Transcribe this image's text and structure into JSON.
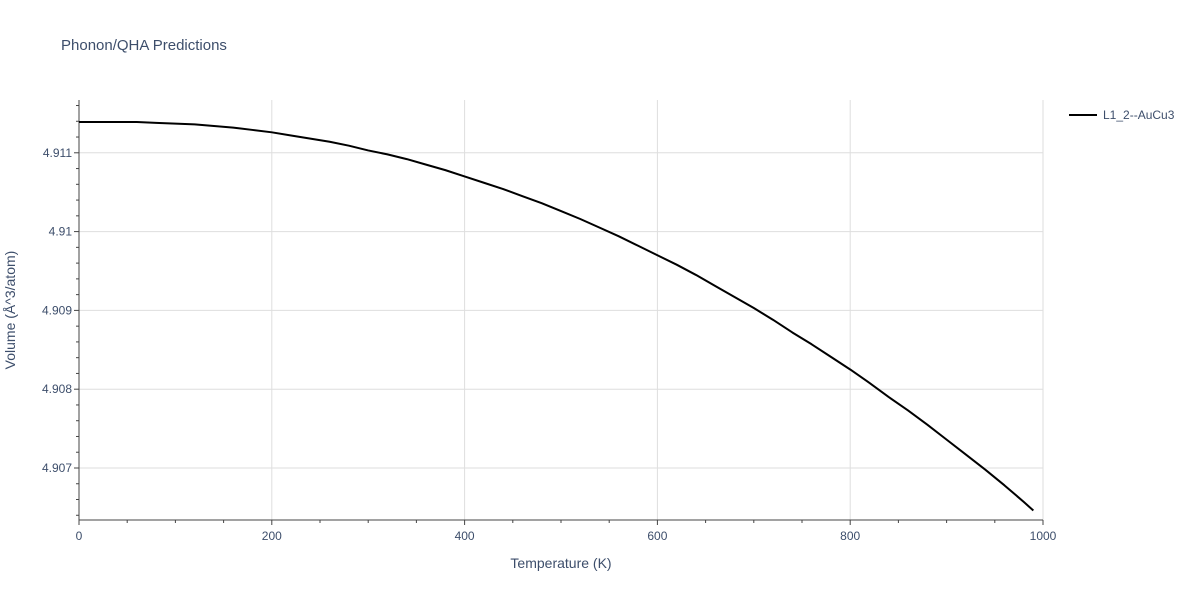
{
  "chart_data": {
    "type": "line",
    "title": "Phonon/QHA Predictions",
    "xlabel": "Temperature (K)",
    "ylabel": "Volume (Å^3/atom)",
    "xlim": [
      0,
      1000
    ],
    "ylim": [
      4.90634,
      4.91167
    ],
    "x_ticks": [
      0,
      200,
      400,
      600,
      800,
      1000
    ],
    "x_tick_labels": [
      "0",
      "200",
      "400",
      "600",
      "800",
      "1000"
    ],
    "y_ticks": [
      4.907,
      4.908,
      4.909,
      4.91,
      4.911
    ],
    "y_tick_labels": [
      "4.907",
      "4.908",
      "4.909",
      "4.91",
      "4.911"
    ],
    "x_minor_step": 50,
    "y_minor_step": 0.0002,
    "grid": true,
    "legend_position": "top-right",
    "series": [
      {
        "name": "L1_2--AuCu3",
        "color": "#000000",
        "x": [
          0,
          20,
          40,
          60,
          80,
          100,
          120,
          140,
          160,
          180,
          200,
          220,
          240,
          260,
          280,
          300,
          320,
          340,
          360,
          380,
          400,
          420,
          440,
          460,
          480,
          500,
          520,
          540,
          560,
          580,
          600,
          620,
          640,
          660,
          680,
          700,
          720,
          740,
          760,
          780,
          800,
          820,
          840,
          860,
          880,
          900,
          920,
          940,
          960,
          980,
          990
        ],
        "y": [
          4.91139,
          4.91139,
          4.91139,
          4.91139,
          4.91138,
          4.91137,
          4.91136,
          4.91134,
          4.91132,
          4.91129,
          4.91126,
          4.91122,
          4.91118,
          4.91114,
          4.91109,
          4.91103,
          4.91098,
          4.91092,
          4.91085,
          4.91078,
          4.9107,
          4.91062,
          4.91054,
          4.91045,
          4.91036,
          4.91026,
          4.91016,
          4.91005,
          4.90994,
          4.90982,
          4.9097,
          4.90958,
          4.90945,
          4.90931,
          4.90917,
          4.90903,
          4.90888,
          4.90872,
          4.90857,
          4.90841,
          4.90825,
          4.90808,
          4.9079,
          4.90773,
          4.90755,
          4.90736,
          4.90717,
          4.90698,
          4.90678,
          4.90657,
          4.90646
        ]
      }
    ]
  }
}
